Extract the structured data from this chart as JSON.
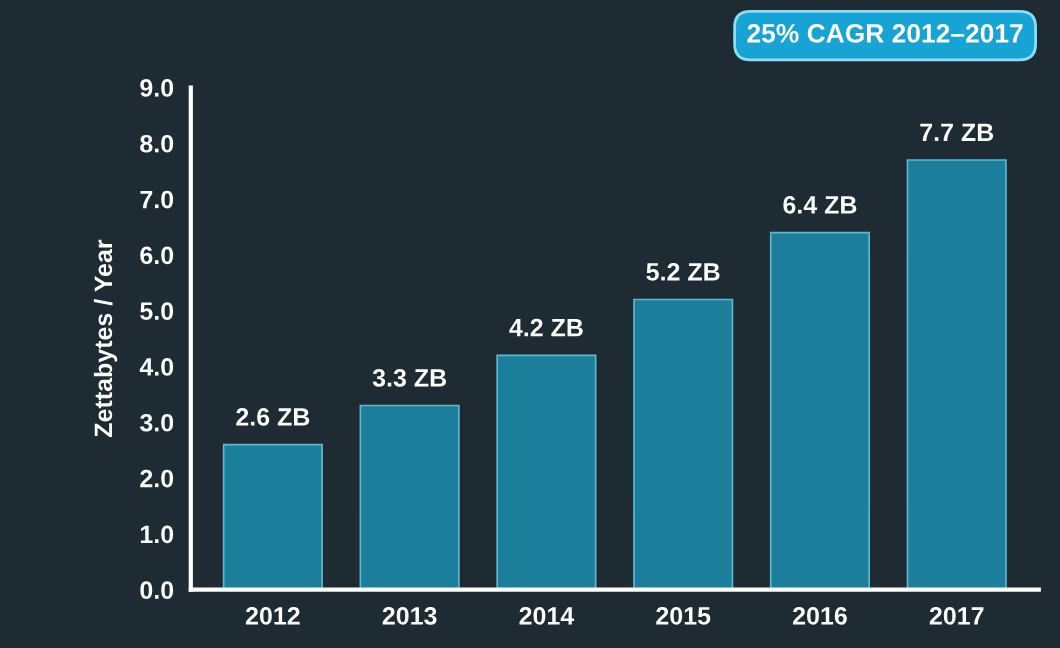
{
  "chart_data": {
    "type": "bar",
    "ylabel": "Zettabytes / Year",
    "categories": [
      "2012",
      "2013",
      "2014",
      "2015",
      "2016",
      "2017"
    ],
    "values": [
      2.6,
      3.3,
      4.2,
      5.2,
      6.4,
      7.7
    ],
    "value_labels": [
      "2.6 ZB",
      "3.3 ZB",
      "4.2 ZB",
      "5.2 ZB",
      "6.4 ZB",
      "7.7 ZB"
    ],
    "color": "#1b7f9c",
    "ylim": [
      0,
      9
    ],
    "yticks": [
      {
        "value": 0,
        "label": "0.0"
      },
      {
        "value": 1,
        "label": "1.0"
      },
      {
        "value": 2,
        "label": "2.0"
      },
      {
        "value": 3,
        "label": "3.0"
      },
      {
        "value": 4,
        "label": "4.0"
      },
      {
        "value": 5,
        "label": "5.0"
      },
      {
        "value": 6,
        "label": "6.0"
      },
      {
        "value": 7,
        "label": "7.0"
      },
      {
        "value": 8,
        "label": "8.0"
      },
      {
        "value": 9,
        "label": "9.0"
      }
    ],
    "grid": false,
    "annotations": [
      "25% CAGR 2012–2017"
    ]
  }
}
